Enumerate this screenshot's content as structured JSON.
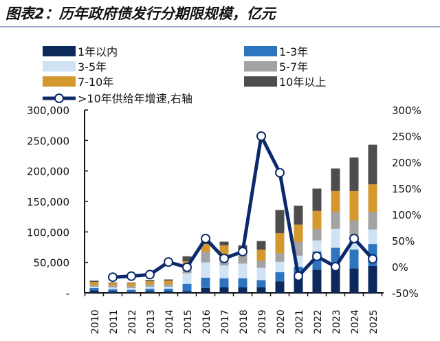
{
  "title": "图表2：历年政府债发行分期限规模，亿元",
  "chart_data": {
    "type": "bar",
    "stacked": true,
    "categories": [
      "2010",
      "2011",
      "2012",
      "2013",
      "2014",
      "2015",
      "2016",
      "2017",
      "2018",
      "2019",
      "2020",
      "2021",
      "2022",
      "2023",
      "2024",
      "2025"
    ],
    "series": [
      {
        "name": "1年以内",
        "color": "#0b2a5b",
        "values": [
          4000,
          3000,
          2000,
          3000,
          3000,
          3000,
          8000,
          9000,
          9000,
          9000,
          19000,
          28000,
          38000,
          40000,
          40000,
          44000
        ]
      },
      {
        "name": "1-3年",
        "color": "#2e75c0",
        "values": [
          4000,
          3000,
          3000,
          4000,
          4000,
          12000,
          17000,
          15000,
          15000,
          12000,
          15000,
          15000,
          30000,
          34000,
          31000,
          36000
        ]
      },
      {
        "name": "3-5年",
        "color": "#cfe3f5",
        "values": [
          2000,
          3000,
          3000,
          3000,
          3000,
          17000,
          25000,
          21000,
          24000,
          20000,
          17000,
          18000,
          18000,
          31000,
          11000,
          24000
        ]
      },
      {
        "name": "5-7年",
        "color": "#a3a3a3",
        "values": [
          3000,
          3000,
          3000,
          4000,
          4000,
          9000,
          17000,
          9000,
          17000,
          12000,
          14000,
          23000,
          19000,
          28000,
          37000,
          29000
        ]
      },
      {
        "name": "7-10年",
        "color": "#d4982f",
        "values": [
          5000,
          4000,
          5000,
          5000,
          6000,
          11000,
          13000,
          24000,
          7000,
          18000,
          33000,
          28000,
          29500,
          34000,
          48000,
          45000
        ]
      },
      {
        "name": "10年以上",
        "color": "#4d4d4d",
        "values": [
          2000,
          1000,
          1000,
          2000,
          2000,
          8000,
          4000,
          6000,
          6000,
          14000,
          38000,
          31000,
          36500,
          37000,
          55000,
          65000
        ]
      }
    ],
    "line": {
      "name": ">10年供给年增速,右轴",
      "color": "#0c2a6b",
      "axis": "right",
      "values": [
        null,
        -20,
        -18,
        -15,
        9,
        -1,
        54,
        16,
        29,
        250,
        180,
        -18,
        20,
        0,
        54,
        15
      ]
    },
    "ylim": [
      0,
      300000
    ],
    "yticks": [
      "-",
      "50,000",
      "100,000",
      "150,000",
      "200,000",
      "250,000",
      "300,000"
    ],
    "y2lim": [
      -50,
      300
    ],
    "y2ticks": [
      "-50%",
      "0%",
      "50%",
      "100%",
      "150%",
      "200%",
      "250%",
      "300%"
    ],
    "legend": "top"
  }
}
